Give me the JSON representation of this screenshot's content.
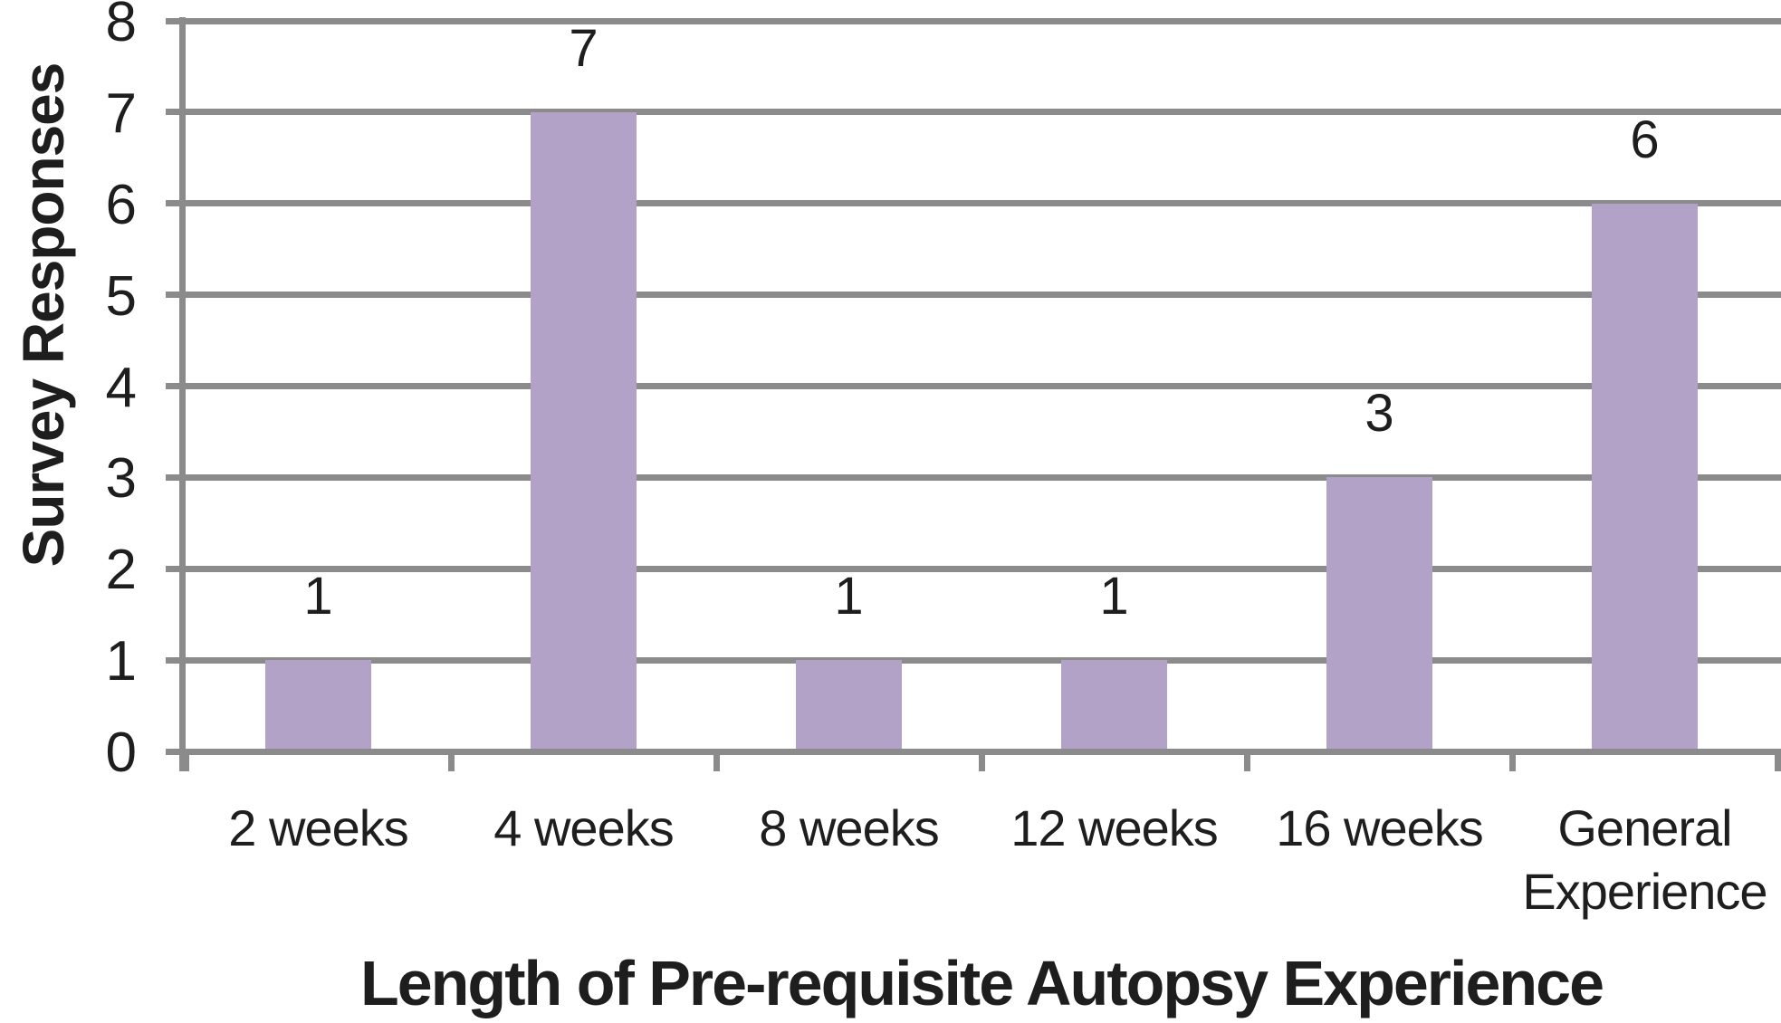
{
  "chart_data": {
    "type": "bar",
    "categories": [
      "2 weeks",
      "4 weeks",
      "8 weeks",
      "12 weeks",
      "16 weeks",
      "General Experience"
    ],
    "values": [
      1,
      7,
      1,
      1,
      3,
      6
    ],
    "data_labels": [
      "1",
      "7",
      "1",
      "1",
      "3",
      "6"
    ],
    "xlabel": "Length of Pre-requisite Autopsy Experience",
    "ylabel": "Survey Responses",
    "ylim": [
      0,
      8
    ],
    "y_ticks": [
      "0",
      "1",
      "2",
      "3",
      "4",
      "5",
      "6",
      "7",
      "8"
    ],
    "grid": "horizontal gridlines on",
    "legend": "none",
    "bar_color": "#b2a2c8",
    "gridline_color": "#8b8b8b",
    "text_color": "#1e1e1e"
  }
}
